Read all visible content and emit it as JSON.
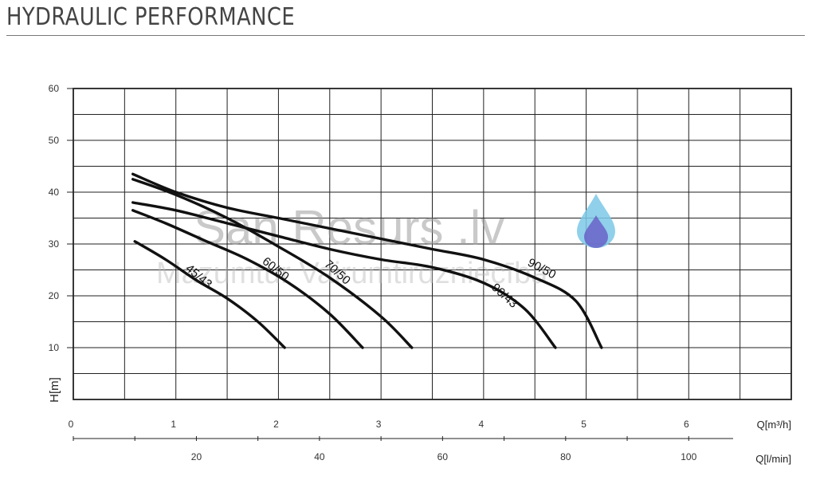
{
  "header": {
    "title": "HYDRAULIC PERFORMANCE"
  },
  "watermark": {
    "text": "San Resurs .lv",
    "subtext": "Mazumtur Vairumtirdzniecība"
  },
  "chart_data": {
    "type": "line",
    "title": "HYDRAULIC PERFORMANCE",
    "ylabel": "H[m]",
    "xlabel": "Q[m³/h]",
    "xlabel_secondary": "Q[l/min]",
    "ylim": [
      0,
      60
    ],
    "xlim": [
      0,
      7
    ],
    "secondary_xlim": [
      0,
      116.67
    ],
    "yticks": [
      10,
      20,
      30,
      40,
      50,
      60
    ],
    "xticks": [
      0,
      1,
      2,
      3,
      4,
      5,
      6
    ],
    "secondary_xticks": [
      20,
      40,
      60,
      80,
      100
    ],
    "grid": true,
    "legend": "none",
    "series": [
      {
        "name": "45/43",
        "x": [
          0.6,
          0.9,
          1.2,
          1.5,
          1.8,
          2.06
        ],
        "y": [
          30.5,
          27,
          23,
          19.5,
          15,
          10
        ]
      },
      {
        "name": "60/50",
        "x": [
          0.58,
          0.9,
          1.3,
          1.7,
          2.1,
          2.5,
          2.82
        ],
        "y": [
          36.5,
          34,
          30.5,
          27,
          22.5,
          16.5,
          10
        ]
      },
      {
        "name": "70/50",
        "x": [
          0.58,
          1.0,
          1.5,
          2.0,
          2.5,
          3.0,
          3.3
        ],
        "y": [
          42.5,
          39.5,
          35,
          29.5,
          23.5,
          16,
          10
        ]
      },
      {
        "name": "90/43",
        "x": [
          0.58,
          1.0,
          1.5,
          2.0,
          2.5,
          3.0,
          3.5,
          4.0,
          4.4,
          4.7
        ],
        "y": [
          38,
          36.5,
          34,
          31.5,
          29,
          27,
          25.5,
          22.5,
          17.5,
          10
        ]
      },
      {
        "name": "90/50",
        "x": [
          0.58,
          1.0,
          1.5,
          2.0,
          2.5,
          3.0,
          3.5,
          4.0,
          4.5,
          4.9,
          5.15
        ],
        "y": [
          43.5,
          40,
          37,
          35,
          33,
          31,
          29,
          27,
          23.5,
          19,
          10
        ]
      }
    ]
  }
}
